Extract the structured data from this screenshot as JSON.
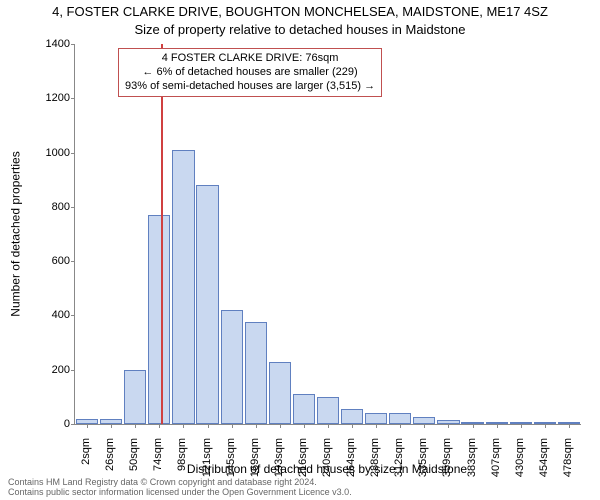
{
  "title_line1": "4, FOSTER CLARKE DRIVE, BOUGHTON MONCHELSEA, MAIDSTONE, ME17 4SZ",
  "title_line2": "Size of property relative to detached houses in Maidstone",
  "ylabel": "Number of detached properties",
  "xlabel": "Distribution of detached houses by size in Maidstone",
  "footer_line1": "Contains HM Land Registry data © Crown copyright and database right 2024.",
  "footer_line2": "Contains public sector information licensed under the Open Government Licence v3.0.",
  "chart": {
    "type": "bar",
    "ylim": [
      0,
      1400
    ],
    "ytick_step": 200,
    "xtick_labels": [
      "2sqm",
      "26sqm",
      "50sqm",
      "74sqm",
      "98sqm",
      "121sqm",
      "145sqm",
      "169sqm",
      "193sqm",
      "216sqm",
      "240sqm",
      "264sqm",
      "288sqm",
      "312sqm",
      "335sqm",
      "359sqm",
      "383sqm",
      "407sqm",
      "430sqm",
      "454sqm",
      "478sqm"
    ],
    "values": [
      20,
      20,
      200,
      770,
      1010,
      880,
      420,
      375,
      230,
      110,
      100,
      55,
      40,
      40,
      25,
      15,
      8,
      5,
      5,
      3,
      2
    ],
    "bar_fill": "#c9d8f0",
    "bar_stroke": "#6080c0",
    "bar_width": 0.92,
    "background_color": "#ffffff",
    "axis_color": "#888888",
    "tick_fontsize": 11,
    "label_fontsize": 12,
    "title_fontsize": 13
  },
  "highlight": {
    "position_sqm": 76,
    "line_color": "#d04040"
  },
  "info_box": {
    "border_color": "#c05050",
    "line1": "4 FOSTER CLARKE DRIVE: 76sqm",
    "line2": "← 6% of detached houses are smaller (229)",
    "line3": "93% of semi-detached houses are larger (3,515) →"
  }
}
